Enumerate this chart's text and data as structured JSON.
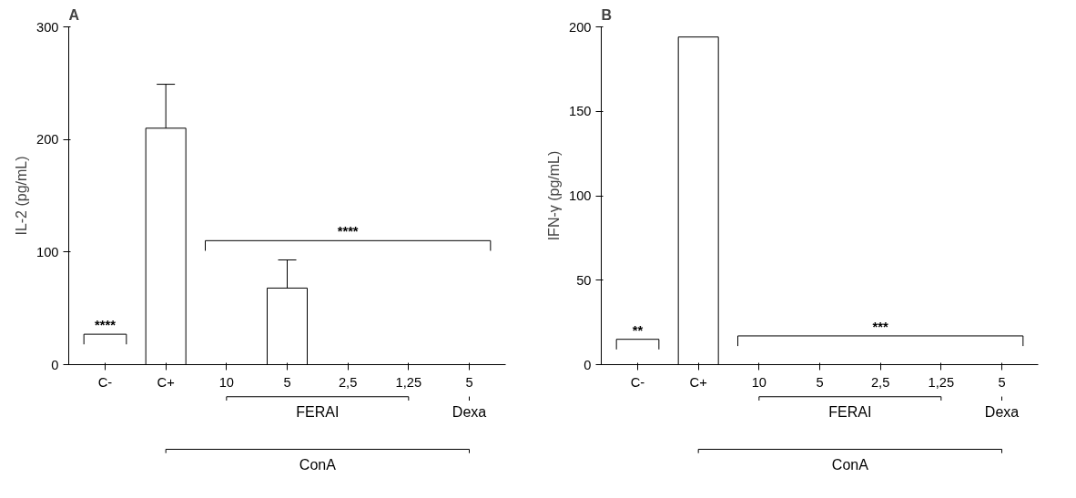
{
  "chart_data": [
    {
      "type": "bar",
      "title": "A",
      "ylabel": "IL-2 (pg/mL)",
      "categories": [
        "C-",
        "C+",
        "10",
        "5",
        "2,5",
        "1,25",
        "5"
      ],
      "values": [
        0,
        210,
        0,
        68,
        0,
        0,
        0
      ],
      "errors": [
        null,
        [
          210,
          249
        ],
        null,
        [
          68,
          93
        ],
        null,
        null,
        null
      ],
      "colors": [
        "#ffffff",
        "#ffffff",
        "#ffffff",
        "#ffffff",
        "#ffffff",
        "#ffffff",
        "#ffffff"
      ],
      "ylim": [
        0,
        300
      ],
      "yticks": [
        0,
        100,
        200,
        300
      ],
      "grid": false,
      "annotations": [
        "****",
        "****",
        "FERAI",
        "Dexa",
        "ConA"
      ]
    },
    {
      "type": "bar",
      "title": "B",
      "ylabel": "IFN-γ (pg/mL)",
      "categories": [
        "C-",
        "C+",
        "10",
        "5",
        "2,5",
        "1,25",
        "5"
      ],
      "values": [
        0,
        194,
        0,
        0,
        0,
        0,
        0
      ],
      "colors": [
        "#ffffff",
        "#ffffff",
        "#ffffff",
        "#ffffff",
        "#ffffff",
        "#ffffff",
        "#ffffff"
      ],
      "ylim": [
        0,
        200
      ],
      "yticks": [
        0,
        50,
        100,
        150,
        200
      ],
      "grid": false,
      "annotations": [
        "**",
        "***",
        "FERAI",
        "Dexa",
        "ConA"
      ]
    }
  ]
}
